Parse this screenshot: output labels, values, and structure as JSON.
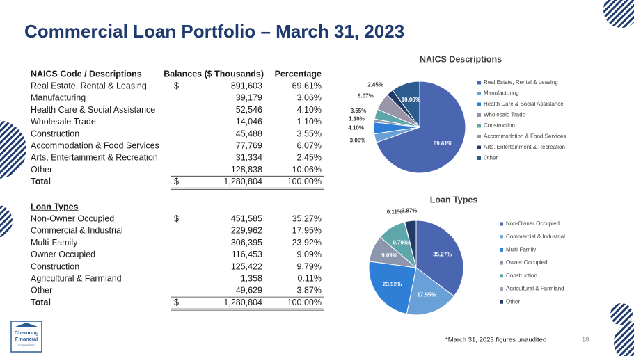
{
  "title": "Commercial Loan Portfolio – March 31, 2023",
  "naics_table": {
    "headers": [
      "NAICS Code / Descriptions",
      "Balances ($ Thousands)",
      "Percentage"
    ],
    "rows": [
      {
        "label": "Real Estate, Rental & Leasing",
        "currency": "$",
        "balance": "891,603",
        "percentage": "69.61%"
      },
      {
        "label": "Manufacturing",
        "balance": "39,179",
        "percentage": "3.06%"
      },
      {
        "label": "Health Care & Social Assistance",
        "balance": "52,546",
        "percentage": "4.10%"
      },
      {
        "label": "Wholesale Trade",
        "balance": "14,046",
        "percentage": "1.10%"
      },
      {
        "label": "Construction",
        "balance": "45,488",
        "percentage": "3.55%"
      },
      {
        "label": "Accommodation & Food Services",
        "balance": "77,769",
        "percentage": "6.07%"
      },
      {
        "label": "Arts, Entertainment & Recreation",
        "balance": "31,334",
        "percentage": "2.45%"
      },
      {
        "label": "Other",
        "balance": "128,838",
        "percentage": "10.06%"
      }
    ],
    "total": {
      "label": "Total",
      "currency": "$",
      "balance": "1,280,804",
      "percentage": "100.00%"
    }
  },
  "loan_table": {
    "headers": [
      "Loan Types"
    ],
    "rows": [
      {
        "label": "Non-Owner Occupied",
        "currency": "$",
        "balance": "451,585",
        "percentage": "35.27%"
      },
      {
        "label": "Commercial & Industrial",
        "balance": "229,962",
        "percentage": "17.95%"
      },
      {
        "label": "Multi-Family",
        "balance": "306,395",
        "percentage": "23.92%"
      },
      {
        "label": "Owner Occupied",
        "balance": "116,453",
        "percentage": "9.09%"
      },
      {
        "label": "Construction",
        "balance": "125,422",
        "percentage": "9.79%"
      },
      {
        "label": "Agricultural & Farmland",
        "balance": "1,358",
        "percentage": "0.11%"
      },
      {
        "label": "Other",
        "balance": "49,629",
        "percentage": "3.87%"
      }
    ],
    "total": {
      "label": "Total",
      "currency": "$",
      "balance": "1,280,804",
      "percentage": "100.00%"
    }
  },
  "chart_data": [
    {
      "type": "pie",
      "title": "NAICS Descriptions",
      "categories": [
        "Real Estate, Rental & Leasing",
        "Manufacturing",
        "Health Care & Social Assistance",
        "Wholesale Trade",
        "Construction",
        "Accommodation & Food Services",
        "Arts, Entertainment & Recreation",
        "Other"
      ],
      "values": [
        69.61,
        3.06,
        4.1,
        1.1,
        3.55,
        6.07,
        2.45,
        10.06
      ],
      "value_labels": [
        "69.61%",
        "3.06%",
        "4.10%",
        "1.10%",
        "3.55%",
        "6.07%",
        "2.45%",
        "10.06%"
      ],
      "colors": [
        "#4a66b0",
        "#6aa0d8",
        "#2f7fd6",
        "#8c96ad",
        "#5fa6ab",
        "#9a94a8",
        "#213a66",
        "#2d5d8f"
      ],
      "legend": "right"
    },
    {
      "type": "pie",
      "title": "Loan Types",
      "categories": [
        "Non-Owner Occupied",
        "Commercial & Industrial",
        "Multi-Family",
        "Owner Occupied",
        "Construction",
        "Agricultural & Farmland",
        "Other"
      ],
      "values": [
        35.27,
        17.95,
        23.92,
        9.09,
        9.79,
        0.11,
        3.87
      ],
      "value_labels": [
        "35.27%",
        "17.95%",
        "23.92%",
        "9.09%",
        "9.79%",
        "0.11%",
        "3.87%"
      ],
      "colors": [
        "#4a66b0",
        "#6aa0d8",
        "#2f7fd6",
        "#8c96ad",
        "#5fa6ab",
        "#a3a0b8",
        "#213a66"
      ],
      "legend": "right"
    }
  ],
  "footnote": "*March 31, 2023 figures unaudited",
  "page_number": "18",
  "logo": {
    "line1": "Chemung",
    "line2": "Financial",
    "line3": "Corporation"
  }
}
